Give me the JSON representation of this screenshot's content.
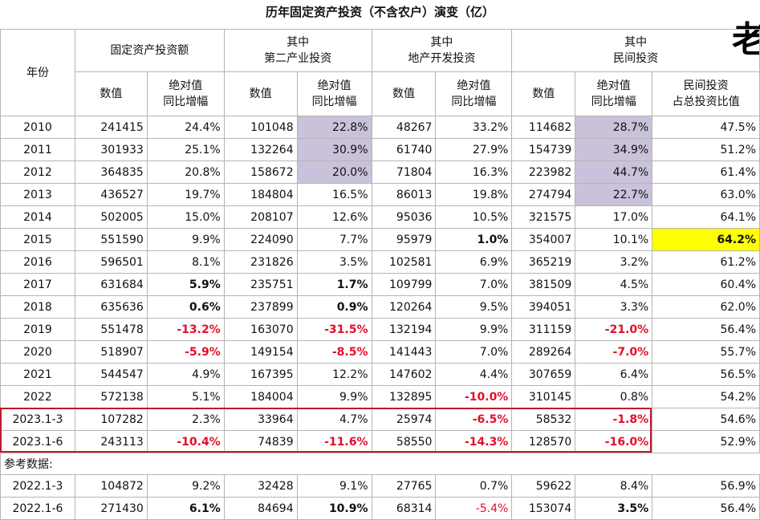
{
  "title": "历年固定资产投资（不含农户）演变（亿）",
  "corner_char": "老",
  "headers": {
    "year": "年份",
    "fai_group": "固定资产投资额",
    "secondary_group_l1": "其中",
    "secondary_group_l2": "第二产业投资",
    "realestate_group_l1": "其中",
    "realestate_group_l2": "地产开发投资",
    "private_group_l1": "其中",
    "private_group_l2": "民间投资",
    "value": "数值",
    "yoy_l1": "绝对值",
    "yoy_l2": "同比增幅",
    "share_l1": "民间投资",
    "share_l2": "占总投资比值"
  },
  "reference_label": "参考数据:",
  "rows": [
    {
      "year": "2010",
      "fai": "241415",
      "fai_yoy": "24.4%",
      "sec": "101048",
      "sec_yoy": "22.8%",
      "re": "48267",
      "re_yoy": "33.2%",
      "pri": "114682",
      "pri_yoy": "28.7%",
      "share": "47.5%"
    },
    {
      "year": "2011",
      "fai": "301933",
      "fai_yoy": "25.1%",
      "sec": "132264",
      "sec_yoy": "30.9%",
      "re": "61740",
      "re_yoy": "27.9%",
      "pri": "154739",
      "pri_yoy": "34.9%",
      "share": "51.2%"
    },
    {
      "year": "2012",
      "fai": "364835",
      "fai_yoy": "20.8%",
      "sec": "158672",
      "sec_yoy": "20.0%",
      "re": "71804",
      "re_yoy": "16.3%",
      "pri": "223982",
      "pri_yoy": "44.7%",
      "share": "61.4%"
    },
    {
      "year": "2013",
      "fai": "436527",
      "fai_yoy": "19.7%",
      "sec": "184804",
      "sec_yoy": "16.5%",
      "re": "86013",
      "re_yoy": "19.8%",
      "pri": "274794",
      "pri_yoy": "22.7%",
      "share": "63.0%"
    },
    {
      "year": "2014",
      "fai": "502005",
      "fai_yoy": "15.0%",
      "sec": "208107",
      "sec_yoy": "12.6%",
      "re": "95036",
      "re_yoy": "10.5%",
      "pri": "321575",
      "pri_yoy": "17.0%",
      "share": "64.1%"
    },
    {
      "year": "2015",
      "fai": "551590",
      "fai_yoy": "9.9%",
      "sec": "224090",
      "sec_yoy": "7.7%",
      "re": "95979",
      "re_yoy": "1.0%",
      "pri": "354007",
      "pri_yoy": "10.1%",
      "share": "64.2%"
    },
    {
      "year": "2016",
      "fai": "596501",
      "fai_yoy": "8.1%",
      "sec": "231826",
      "sec_yoy": "3.5%",
      "re": "102581",
      "re_yoy": "6.9%",
      "pri": "365219",
      "pri_yoy": "3.2%",
      "share": "61.2%"
    },
    {
      "year": "2017",
      "fai": "631684",
      "fai_yoy": "5.9%",
      "sec": "235751",
      "sec_yoy": "1.7%",
      "re": "109799",
      "re_yoy": "7.0%",
      "pri": "381509",
      "pri_yoy": "4.5%",
      "share": "60.4%"
    },
    {
      "year": "2018",
      "fai": "635636",
      "fai_yoy": "0.6%",
      "sec": "237899",
      "sec_yoy": "0.9%",
      "re": "120264",
      "re_yoy": "9.5%",
      "pri": "394051",
      "pri_yoy": "3.3%",
      "share": "62.0%"
    },
    {
      "year": "2019",
      "fai": "551478",
      "fai_yoy": "-13.2%",
      "sec": "163070",
      "sec_yoy": "-31.5%",
      "re": "132194",
      "re_yoy": "9.9%",
      "pri": "311159",
      "pri_yoy": "-21.0%",
      "share": "56.4%"
    },
    {
      "year": "2020",
      "fai": "518907",
      "fai_yoy": "-5.9%",
      "sec": "149154",
      "sec_yoy": "-8.5%",
      "re": "141443",
      "re_yoy": "7.0%",
      "pri": "289264",
      "pri_yoy": "-7.0%",
      "share": "55.7%"
    },
    {
      "year": "2021",
      "fai": "544547",
      "fai_yoy": "4.9%",
      "sec": "167395",
      "sec_yoy": "12.2%",
      "re": "147602",
      "re_yoy": "4.4%",
      "pri": "307659",
      "pri_yoy": "6.4%",
      "share": "56.5%"
    },
    {
      "year": "2022",
      "fai": "572138",
      "fai_yoy": "5.1%",
      "sec": "184004",
      "sec_yoy": "9.9%",
      "re": "132895",
      "re_yoy": "-10.0%",
      "pri": "310145",
      "pri_yoy": "0.8%",
      "share": "54.2%"
    },
    {
      "year": "2023.1-3",
      "fai": "107282",
      "fai_yoy": "2.3%",
      "sec": "33964",
      "sec_yoy": "4.7%",
      "re": "25974",
      "re_yoy": "-6.5%",
      "pri": "58532",
      "pri_yoy": "-1.8%",
      "share": "54.6%"
    },
    {
      "year": "2023.1-6",
      "fai": "243113",
      "fai_yoy": "-10.4%",
      "sec": "74839",
      "sec_yoy": "-11.6%",
      "re": "58550",
      "re_yoy": "-14.3%",
      "pri": "128570",
      "pri_yoy": "-16.0%",
      "share": "52.9%"
    }
  ],
  "reference_rows": [
    {
      "year": "2022.1-3",
      "fai": "104872",
      "fai_yoy": "9.2%",
      "sec": "32428",
      "sec_yoy": "9.1%",
      "re": "27765",
      "re_yoy": "0.7%",
      "pri": "59622",
      "pri_yoy": "8.4%",
      "share": "56.9%"
    },
    {
      "year": "2022.1-6",
      "fai": "271430",
      "fai_yoy": "6.1%",
      "sec": "84694",
      "sec_yoy": "10.9%",
      "re": "68314",
      "re_yoy": "-5.4%",
      "pri": "153074",
      "pri_yoy": "3.5%",
      "share": "56.4%"
    }
  ],
  "highlight_colors": {
    "purple": "#c9c2da",
    "yellow": "#ffff00",
    "red_text": "#e0102a",
    "red_border": "#c0192c"
  }
}
